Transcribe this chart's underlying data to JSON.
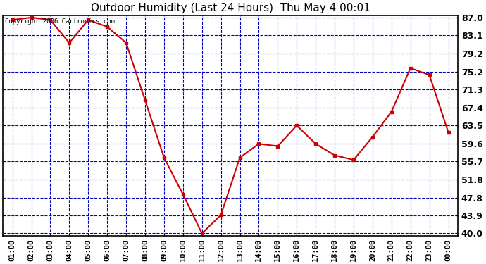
{
  "title": "Outdoor Humidity (Last 24 Hours)  Thu May 4 00:01",
  "copyright_text": "Copyright 2006 Cartronics.com",
  "x_labels": [
    "01:00",
    "02:00",
    "03:00",
    "04:00",
    "05:00",
    "06:00",
    "07:00",
    "08:00",
    "09:00",
    "10:00",
    "11:00",
    "12:00",
    "13:00",
    "14:00",
    "15:00",
    "16:00",
    "17:00",
    "18:00",
    "19:00",
    "20:00",
    "21:00",
    "22:00",
    "23:00",
    "00:00"
  ],
  "y_values": [
    86.5,
    87.0,
    86.5,
    81.5,
    86.5,
    85.0,
    81.5,
    69.0,
    56.5,
    48.5,
    40.0,
    44.0,
    56.5,
    59.5,
    59.0,
    63.5,
    59.5,
    57.0,
    56.0,
    61.0,
    66.5,
    76.0,
    74.5,
    62.0
  ],
  "line_color": "#cc0000",
  "marker_color": "#cc0000",
  "bg_color": "#ffffff",
  "plot_bg_color": "#ffffff",
  "grid_color": "#0000bb",
  "border_color": "#000000",
  "y_min": 40.0,
  "y_max": 87.0,
  "y_ticks": [
    40.0,
    43.9,
    47.8,
    51.8,
    55.7,
    59.6,
    63.5,
    67.4,
    71.3,
    75.2,
    79.2,
    83.1,
    87.0
  ],
  "title_fontsize": 11,
  "copyright_fontsize": 6.5,
  "tick_fontsize": 7.5,
  "ytick_fontsize": 9,
  "marker_size": 3.5,
  "line_width": 1.5
}
